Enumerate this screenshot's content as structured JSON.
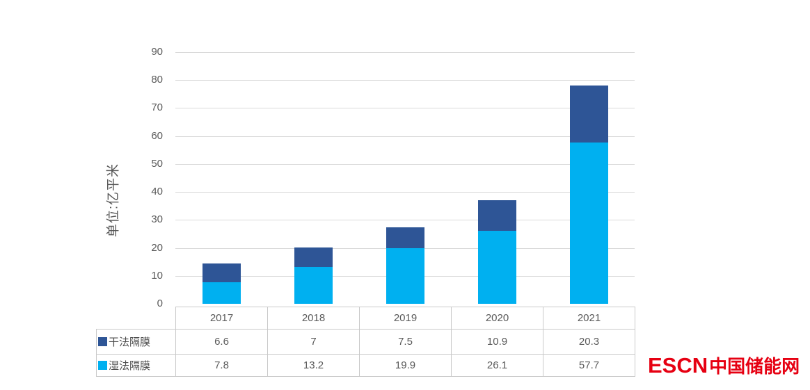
{
  "chart_data": {
    "type": "bar",
    "stacked": true,
    "categories": [
      "2017",
      "2018",
      "2019",
      "2020",
      "2021"
    ],
    "series": [
      {
        "name": "干法隔膜",
        "color": "#2E5596",
        "values": [
          6.6,
          7,
          7.5,
          10.9,
          20.3
        ]
      },
      {
        "name": "湿法隔膜",
        "color": "#00B0F0",
        "values": [
          7.8,
          13.2,
          19.9,
          26.1,
          57.7
        ]
      }
    ],
    "stack_order_bottom_to_top": [
      "湿法隔膜",
      "干法隔膜"
    ],
    "title": "",
    "xlabel": "",
    "ylabel": "单位:亿平米",
    "ylim": [
      0,
      90
    ],
    "ytick_step": 10,
    "grid": true,
    "legend_position": "table-rows-left",
    "colors": {
      "gridline": "#d9d9d9",
      "axis_text": "#595959",
      "table_border": "#c9c9c9"
    }
  },
  "watermark": {
    "text_en": "ESCN",
    "text_zh": "中国储能网",
    "color": "#E60012"
  }
}
